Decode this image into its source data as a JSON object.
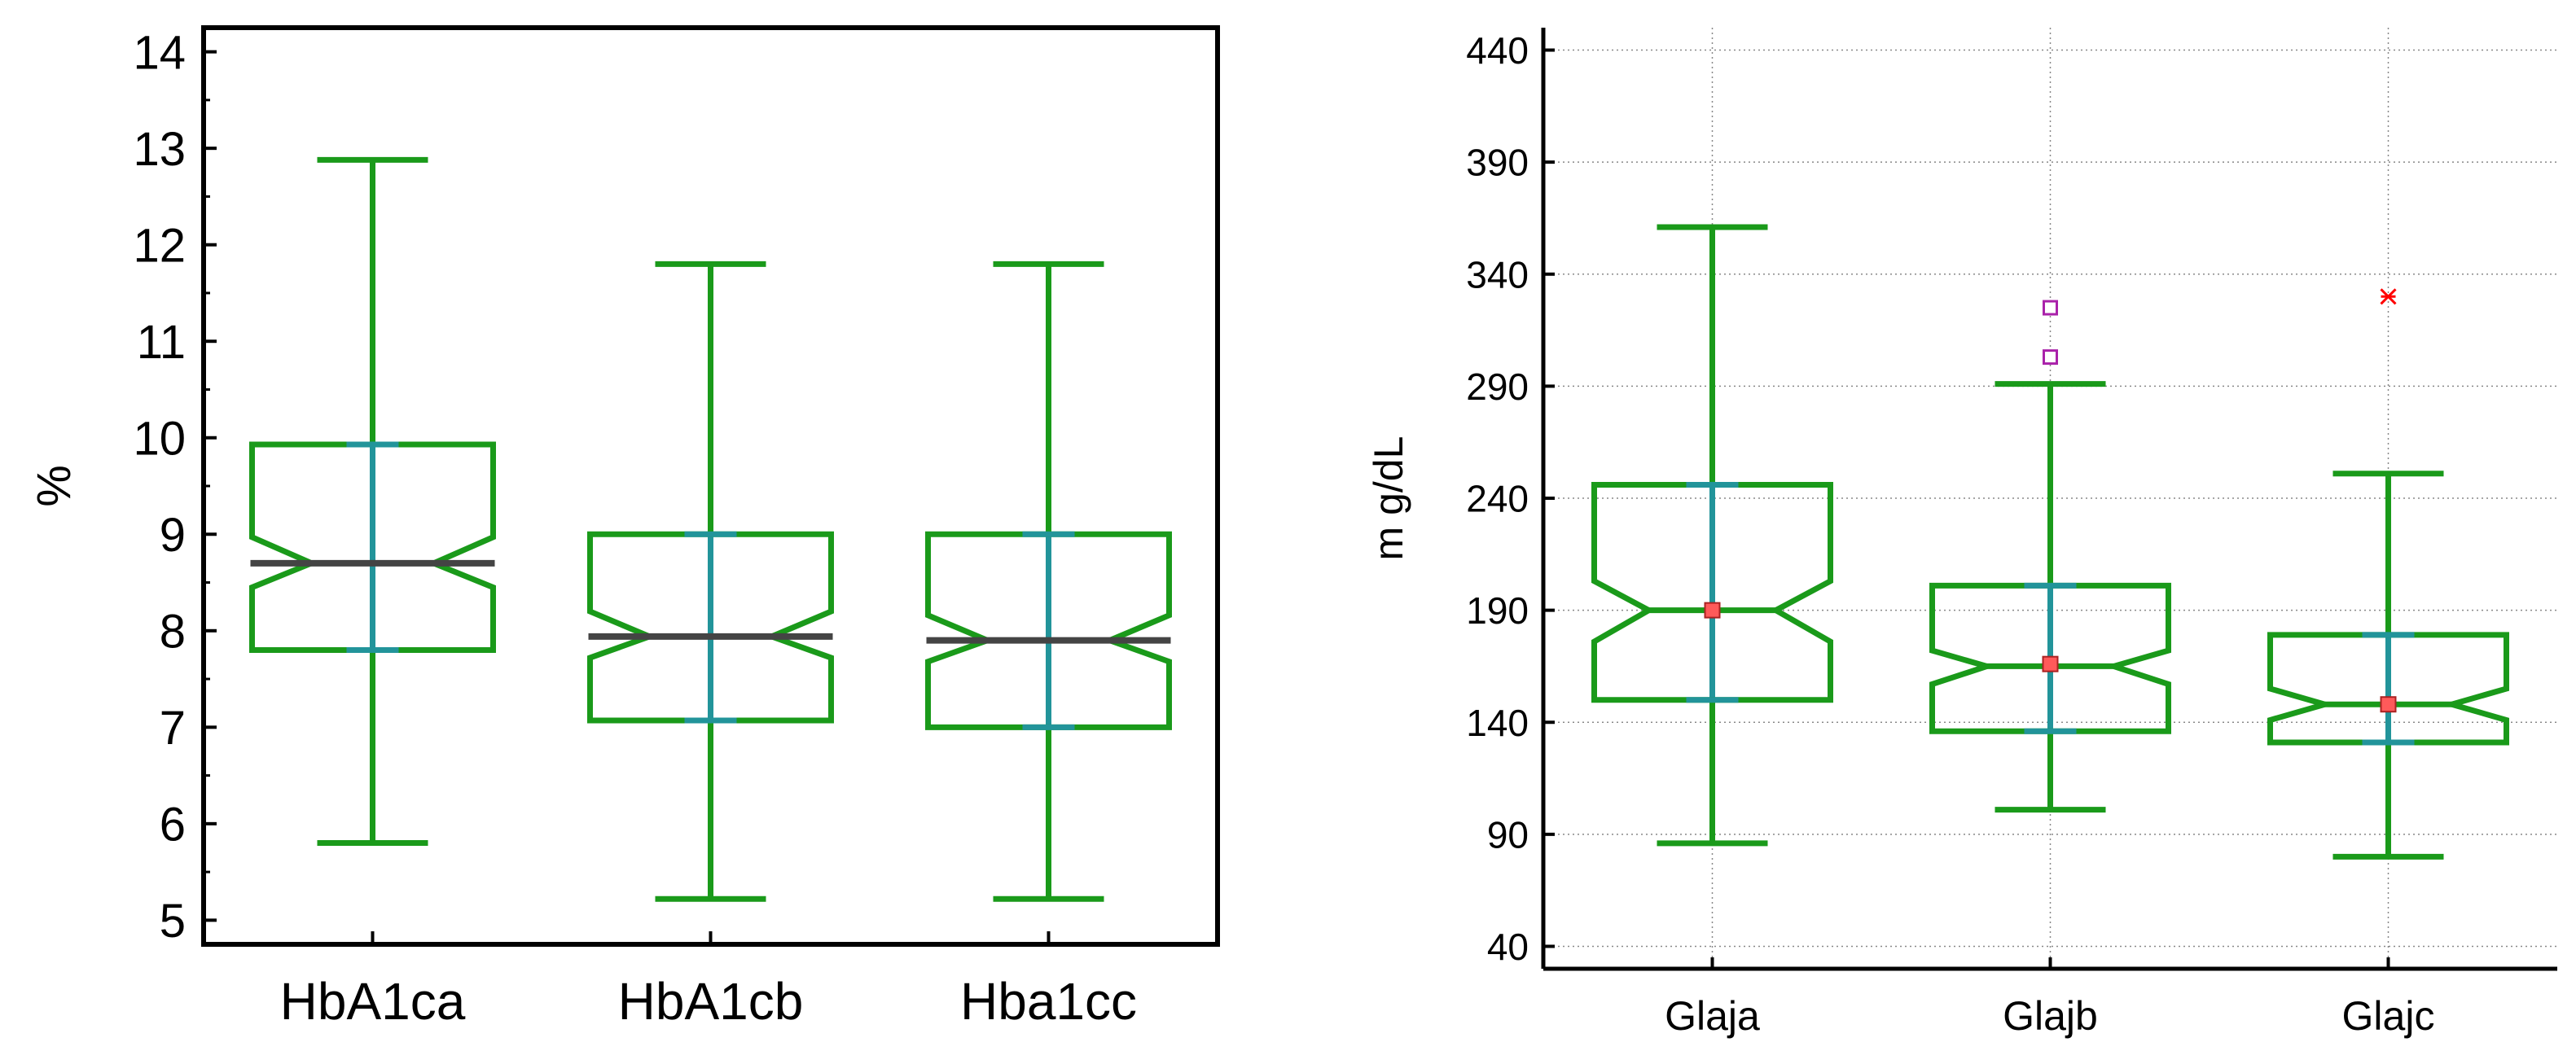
{
  "chart_data": [
    {
      "type": "boxplot",
      "notched": true,
      "xlabel": "",
      "ylabel": "%",
      "ylim": [
        4.75,
        14.25
      ],
      "yticks": [
        5,
        6,
        7,
        8,
        9,
        10,
        11,
        12,
        13,
        14
      ],
      "grid": false,
      "categories": [
        "HbA1ca",
        "HbA1cb",
        "Hba1cc"
      ],
      "boxes": [
        {
          "name": "HbA1ca",
          "whisker_low": 5.8,
          "q1": 7.8,
          "median": 8.7,
          "q3": 9.93,
          "whisker_high": 12.88,
          "notch_low": 8.45,
          "notch_high": 8.97
        },
        {
          "name": "HbA1cb",
          "whisker_low": 5.22,
          "q1": 7.07,
          "median": 7.94,
          "q3": 9.0,
          "whisker_high": 11.8,
          "notch_low": 7.72,
          "notch_high": 8.2
        },
        {
          "name": "Hba1cc",
          "whisker_low": 5.22,
          "q1": 7.0,
          "median": 7.9,
          "q3": 9.0,
          "whisker_high": 11.8,
          "notch_low": 7.68,
          "notch_high": 8.16
        }
      ],
      "colors": {
        "box": "#1a9a1a",
        "notch_line": "#22949a",
        "median": "#444444",
        "axis": "#000000"
      }
    },
    {
      "type": "boxplot",
      "notched": true,
      "xlabel": "",
      "ylabel": "m g/dL",
      "ylim": [
        30,
        450
      ],
      "yticks": [
        40,
        90,
        140,
        190,
        240,
        290,
        340,
        390,
        440
      ],
      "grid": true,
      "categories": [
        "Glaja",
        "Glajb",
        "Glajc"
      ],
      "boxes": [
        {
          "name": "Glaja",
          "whisker_low": 86,
          "q1": 150,
          "median": 190,
          "q3": 246,
          "whisker_high": 361,
          "notch_low": 176,
          "notch_high": 203,
          "mean": 190
        },
        {
          "name": "Glajb",
          "whisker_low": 101,
          "q1": 136,
          "median": 165,
          "q3": 201,
          "whisker_high": 291,
          "notch_low": 157,
          "notch_high": 172,
          "mean": 166,
          "outliers": [
            303,
            325
          ]
        },
        {
          "name": "Glajc",
          "whisker_low": 80,
          "q1": 131,
          "median": 148,
          "q3": 179,
          "whisker_high": 251,
          "notch_low": 141,
          "notch_high": 155,
          "mean": 148,
          "far_outliers": [
            330
          ]
        }
      ],
      "colors": {
        "box": "#1a9a1a",
        "notch_line": "#22949a",
        "mean_fill": "#ff5a5a",
        "outlier": "#aa22aa",
        "far_outlier": "#ff0000",
        "grid": "#888888",
        "axis": "#000000"
      }
    }
  ]
}
